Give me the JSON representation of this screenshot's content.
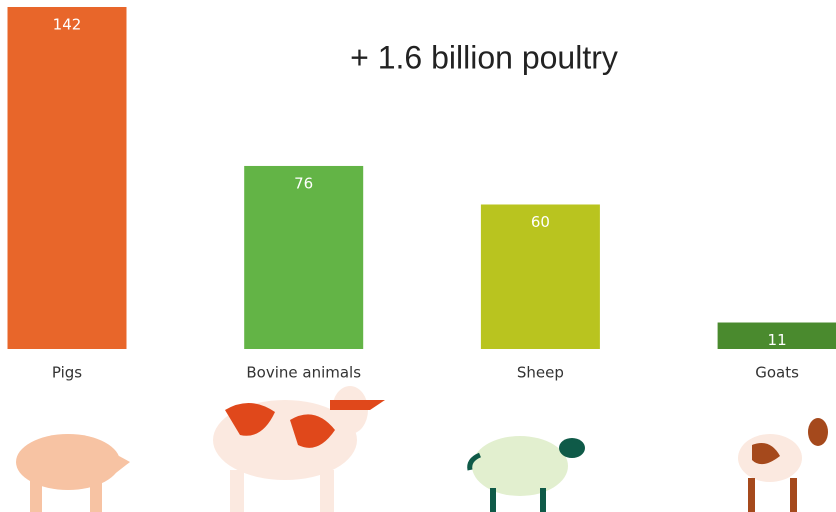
{
  "chart_data": {
    "type": "bar",
    "annotation": "+ 1.6 billion poultry",
    "categories": [
      "Pigs",
      "Bovine animals",
      "Sheep",
      "Goats"
    ],
    "values": [
      142,
      76,
      60,
      11
    ],
    "colors": [
      "#e8662a",
      "#63b446",
      "#b9c41f",
      "#4a8a2e"
    ],
    "ylim": [
      0,
      142
    ]
  }
}
